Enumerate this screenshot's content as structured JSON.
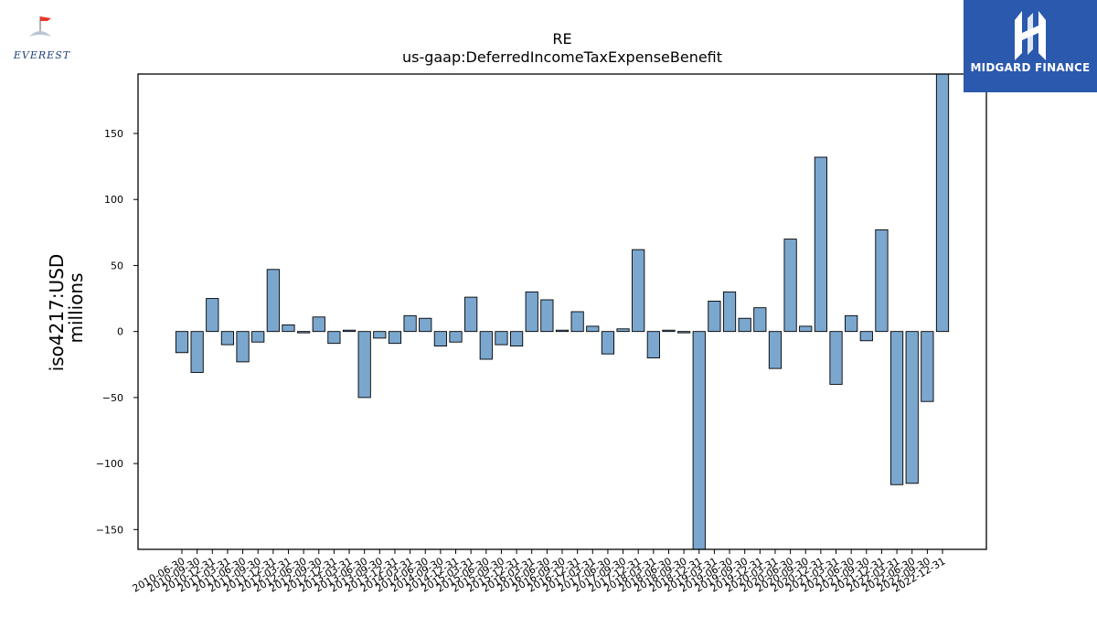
{
  "logos": {
    "left": "EVEREST",
    "right": "MIDGARD FINANCE"
  },
  "colors": {
    "bar_fill": "#7ba7cf",
    "bar_edge": "#000000",
    "midgard_bg": "#2a59ad"
  },
  "chart_data": {
    "type": "bar",
    "title": "RE",
    "subtitle": "us-gaap:DeferredIncomeTaxExpenseBenefit",
    "ylabel": "iso4217:USD",
    "ylabel2": "millions",
    "xlabel": "",
    "ylim": [
      -165,
      195
    ],
    "yticks": [
      -150,
      -100,
      -50,
      0,
      50,
      100,
      150
    ],
    "ytick_labels": [
      "−150",
      "−100",
      "−50",
      "0",
      "50",
      "100",
      "150"
    ],
    "grid": false,
    "categories": [
      "2010-06-30",
      "2010-09-30",
      "2010-12-31",
      "2011-03-31",
      "2011-06-30",
      "2011-09-30",
      "2011-12-31",
      "2012-03-31",
      "2012-06-30",
      "2012-09-30",
      "2012-12-31",
      "2013-03-31",
      "2013-06-30",
      "2013-09-30",
      "2013-12-31",
      "2014-03-31",
      "2014-06-30",
      "2014-09-30",
      "2014-12-31",
      "2015-03-31",
      "2015-06-30",
      "2015-09-30",
      "2015-12-31",
      "2016-03-31",
      "2016-06-30",
      "2016-09-30",
      "2016-12-31",
      "2017-03-31",
      "2017-06-30",
      "2017-09-30",
      "2017-12-31",
      "2018-03-31",
      "2018-06-30",
      "2018-09-30",
      "2018-12-31",
      "2019-03-31",
      "2019-06-30",
      "2019-09-30",
      "2019-12-31",
      "2020-03-31",
      "2020-06-30",
      "2020-09-30",
      "2020-12-31",
      "2021-03-31",
      "2021-06-30",
      "2021-09-30",
      "2021-12-31",
      "2022-03-31",
      "2022-06-30",
      "2022-09-30",
      "2022-12-31"
    ],
    "values": [
      -16,
      -31,
      25,
      -10,
      -23,
      -8,
      47,
      5,
      -1,
      11,
      -9,
      1,
      -50,
      -5,
      -9,
      12,
      10,
      -11,
      -8,
      26,
      -21,
      -10,
      -11,
      30,
      24,
      1,
      15,
      4,
      -17,
      2,
      62,
      -20,
      1,
      -1,
      -170,
      23,
      30,
      10,
      18,
      -28,
      70,
      4,
      132,
      -40,
      12,
      -7,
      77,
      -116,
      -115,
      -53,
      200
    ]
  }
}
